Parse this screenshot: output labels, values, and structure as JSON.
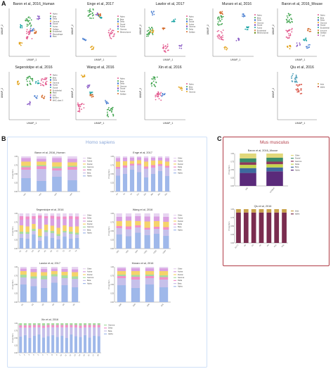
{
  "panel_labels": {
    "a": "A",
    "b": "B",
    "c": "C"
  },
  "umap_axes": {
    "x": "UMAP_1",
    "y": "UMAP_2"
  },
  "umaps": [
    {
      "title": "Baron et al, 2016_Human",
      "legend": [
        "Alpha",
        "Beta",
        "Delta",
        "Gamma",
        "Ductal",
        "Acinar",
        "Stellate",
        "Endothelial",
        "Macrophage",
        "Mast"
      ]
    },
    {
      "title": "Enge et al, 2017",
      "legend": [
        "Alpha",
        "Beta",
        "Delta",
        "Ductal",
        "Acinar",
        "Gamma",
        "Mesenchyme"
      ]
    },
    {
      "title": "Lawlor et al, 2017",
      "legend": [
        "Alpha",
        "Beta",
        "Ductal",
        "Acinar",
        "Gamma",
        "Delta",
        "Stellate"
      ]
    },
    {
      "title": "Muraro et al, 2016",
      "legend": [
        "Alpha",
        "Beta",
        "Delta",
        "Gamma",
        "Ductal",
        "Acinar",
        "Endothelial",
        "Mesenchymal"
      ]
    },
    {
      "title": "Baron et al, 2016_Mouse",
      "legend": [
        "Alpha",
        "Beta",
        "Delta",
        "Gamma",
        "Ductal",
        "Endothelial",
        "Immune",
        "Stellate",
        "T cell"
      ]
    },
    {
      "title": "Segerstolpe et al, 2016",
      "legend": [
        "Alpha",
        "Beta",
        "Delta",
        "Gamma",
        "Acinar",
        "Ductal",
        "Endothelial",
        "Mast",
        "PSC",
        "Epsilon",
        "MHC class II"
      ]
    },
    {
      "title": "Wang et al, 2016",
      "legend": [
        "Alpha",
        "Beta",
        "Delta",
        "Gamma",
        "Ductal",
        "Acinar",
        "Stellate"
      ]
    },
    {
      "title": "Xin et al, 2016",
      "legend": [
        "Alpha",
        "Beta",
        "Delta",
        "Gamma"
      ]
    },
    {
      "title": "Qiu et al, 2016",
      "legend": [
        "beta",
        "alpha"
      ]
    }
  ],
  "section_b": {
    "heading": "Homo sapiens"
  },
  "section_c": {
    "heading": "Mus musculus"
  },
  "colors": {
    "Alpha": "#9fb8ea",
    "Beta": "#c6c0ea",
    "Delta": "#f08fc9",
    "Gamma": "#a6dca0",
    "Ductal": "#f5d36a",
    "Acinar": "#d9a0e2",
    "Stellate": "#7fd3d8",
    "Endothelial": "#ba9a8a",
    "Macrophage": "#d6a7a0",
    "Mast": "#f7b3a0",
    "Other": "#e7d4f1",
    "Ubeta": "#d4a22f",
    "Ualpha": "#4f9eb8"
  },
  "chart_data": [
    {
      "type": "bar",
      "title": "Baron et al, 2016_Human",
      "ylabel": "Proportion",
      "categories": [
        "Hs1",
        "Hs2",
        "Hs3",
        "Hs4"
      ],
      "ylim": [
        0,
        1
      ],
      "series": [
        {
          "name": "Alpha",
          "values": [
            0.38,
            0.3,
            0.42,
            0.32
          ]
        },
        {
          "name": "Beta",
          "values": [
            0.24,
            0.34,
            0.18,
            0.3
          ]
        },
        {
          "name": "Delta",
          "values": [
            0.07,
            0.08,
            0.06,
            0.08
          ]
        },
        {
          "name": "Gamma",
          "values": [
            0.04,
            0.03,
            0.05,
            0.03
          ]
        },
        {
          "name": "Ductal",
          "values": [
            0.12,
            0.1,
            0.12,
            0.1
          ]
        },
        {
          "name": "Acinar",
          "values": [
            0.1,
            0.08,
            0.12,
            0.1
          ]
        },
        {
          "name": "Other",
          "values": [
            0.05,
            0.07,
            0.05,
            0.07
          ]
        }
      ]
    },
    {
      "type": "bar",
      "title": "Enge et al, 2017",
      "ylabel": "Proportion",
      "categories": [
        "1m",
        "5y",
        "6y",
        "21y",
        "22y",
        "38y",
        "44y",
        "54y"
      ],
      "ylim": [
        0,
        1
      ],
      "series": [
        {
          "name": "Alpha",
          "values": [
            0.45,
            0.5,
            0.62,
            0.55,
            0.4,
            0.5,
            0.58,
            0.44
          ]
        },
        {
          "name": "Beta",
          "values": [
            0.2,
            0.18,
            0.12,
            0.2,
            0.25,
            0.18,
            0.15,
            0.24
          ]
        },
        {
          "name": "Delta",
          "values": [
            0.05,
            0.06,
            0.05,
            0.04,
            0.06,
            0.07,
            0.05,
            0.05
          ]
        },
        {
          "name": "Ductal",
          "values": [
            0.15,
            0.12,
            0.08,
            0.1,
            0.14,
            0.13,
            0.1,
            0.12
          ]
        },
        {
          "name": "Acinar",
          "values": [
            0.1,
            0.1,
            0.09,
            0.08,
            0.1,
            0.08,
            0.08,
            0.1
          ]
        },
        {
          "name": "Other",
          "values": [
            0.05,
            0.04,
            0.04,
            0.03,
            0.05,
            0.04,
            0.04,
            0.05
          ]
        }
      ]
    },
    {
      "type": "bar",
      "title": "Segerstolpe et al, 2016",
      "ylabel": "Proportion",
      "categories": [
        "H1",
        "H2",
        "H3",
        "H4",
        "H5",
        "H6",
        "T1",
        "T2",
        "T3",
        "T4"
      ],
      "ylim": [
        0,
        1
      ],
      "series": [
        {
          "name": "Alpha",
          "values": [
            0.3,
            0.28,
            0.4,
            0.22,
            0.35,
            0.3,
            0.26,
            0.34,
            0.28,
            0.3
          ]
        },
        {
          "name": "Beta",
          "values": [
            0.12,
            0.14,
            0.1,
            0.1,
            0.12,
            0.14,
            0.1,
            0.12,
            0.14,
            0.1
          ]
        },
        {
          "name": "Gamma",
          "values": [
            0.06,
            0.05,
            0.06,
            0.04,
            0.05,
            0.06,
            0.05,
            0.04,
            0.06,
            0.05
          ]
        },
        {
          "name": "Ductal",
          "values": [
            0.18,
            0.16,
            0.14,
            0.2,
            0.16,
            0.15,
            0.18,
            0.16,
            0.14,
            0.18
          ]
        },
        {
          "name": "Acinar",
          "values": [
            0.16,
            0.2,
            0.14,
            0.3,
            0.18,
            0.2,
            0.24,
            0.18,
            0.22,
            0.2
          ]
        },
        {
          "name": "Delta",
          "values": [
            0.1,
            0.08,
            0.08,
            0.08,
            0.06,
            0.08,
            0.08,
            0.07,
            0.08,
            0.08
          ]
        },
        {
          "name": "Other",
          "values": [
            0.08,
            0.09,
            0.08,
            0.06,
            0.08,
            0.07,
            0.09,
            0.09,
            0.08,
            0.09
          ]
        }
      ]
    },
    {
      "type": "bar",
      "title": "Wang et al, 2016",
      "ylabel": "Proportion",
      "categories": [
        "ND1",
        "ND2",
        "ND3",
        "T2D1",
        "T2D2",
        "T2D3"
      ],
      "ylim": [
        0,
        1
      ],
      "series": [
        {
          "name": "Alpha",
          "values": [
            0.4,
            0.35,
            0.45,
            0.38,
            0.42,
            0.36
          ]
        },
        {
          "name": "Beta",
          "values": [
            0.18,
            0.2,
            0.15,
            0.16,
            0.14,
            0.18
          ]
        },
        {
          "name": "Delta",
          "values": [
            0.06,
            0.08,
            0.06,
            0.05,
            0.06,
            0.07
          ]
        },
        {
          "name": "Ductal",
          "values": [
            0.14,
            0.16,
            0.12,
            0.18,
            0.16,
            0.15
          ]
        },
        {
          "name": "Acinar",
          "values": [
            0.12,
            0.12,
            0.14,
            0.14,
            0.13,
            0.14
          ]
        },
        {
          "name": "Other",
          "values": [
            0.1,
            0.09,
            0.08,
            0.09,
            0.09,
            0.1
          ]
        }
      ]
    },
    {
      "type": "bar",
      "title": "Lawlor et al, 2017",
      "ylabel": "Proportion",
      "categories": [
        "D1",
        "D2",
        "D3",
        "D4",
        "D5",
        "D6"
      ],
      "ylim": [
        0,
        1
      ],
      "series": [
        {
          "name": "Alpha",
          "values": [
            0.5,
            0.45,
            0.4,
            0.55,
            0.48,
            0.42
          ]
        },
        {
          "name": "Beta",
          "values": [
            0.2,
            0.22,
            0.25,
            0.18,
            0.2,
            0.24
          ]
        },
        {
          "name": "Gamma",
          "values": [
            0.08,
            0.06,
            0.1,
            0.06,
            0.08,
            0.07
          ]
        },
        {
          "name": "Ductal",
          "values": [
            0.1,
            0.12,
            0.1,
            0.09,
            0.1,
            0.12
          ]
        },
        {
          "name": "Acinar",
          "values": [
            0.07,
            0.09,
            0.09,
            0.07,
            0.08,
            0.08
          ]
        },
        {
          "name": "Other",
          "values": [
            0.05,
            0.06,
            0.06,
            0.05,
            0.06,
            0.07
          ]
        }
      ]
    },
    {
      "type": "bar",
      "title": "Muraro et al, 2016",
      "ylabel": "Proportion",
      "categories": [
        "D28",
        "D29",
        "D30",
        "D31"
      ],
      "ylim": [
        0,
        1
      ],
      "series": [
        {
          "name": "Alpha",
          "values": [
            0.48,
            0.4,
            0.5,
            0.42
          ]
        },
        {
          "name": "Beta",
          "values": [
            0.2,
            0.24,
            0.18,
            0.22
          ]
        },
        {
          "name": "Delta",
          "values": [
            0.06,
            0.08,
            0.06,
            0.07
          ]
        },
        {
          "name": "Gamma",
          "values": [
            0.04,
            0.05,
            0.04,
            0.05
          ]
        },
        {
          "name": "Ductal",
          "values": [
            0.1,
            0.11,
            0.1,
            0.12
          ]
        },
        {
          "name": "Acinar",
          "values": [
            0.08,
            0.08,
            0.08,
            0.08
          ]
        },
        {
          "name": "Other",
          "values": [
            0.04,
            0.04,
            0.04,
            0.04
          ]
        }
      ]
    },
    {
      "type": "bar",
      "title": "Xin et al, 2016",
      "ylabel": "Proportion",
      "categories": [
        "1",
        "2",
        "3",
        "4",
        "5",
        "6",
        "7",
        "8",
        "9",
        "10",
        "11",
        "12",
        "13",
        "14",
        "15",
        "16",
        "17",
        "18"
      ],
      "ylim": [
        0,
        1
      ],
      "series": [
        {
          "name": "Alpha",
          "values": [
            0.55,
            0.6,
            0.5,
            0.58,
            0.62,
            0.52,
            0.56,
            0.6,
            0.54,
            0.58,
            0.5,
            0.62,
            0.56,
            0.54,
            0.6,
            0.52,
            0.58,
            0.56
          ]
        },
        {
          "name": "Beta",
          "values": [
            0.3,
            0.25,
            0.35,
            0.28,
            0.24,
            0.32,
            0.3,
            0.26,
            0.32,
            0.28,
            0.36,
            0.24,
            0.3,
            0.3,
            0.26,
            0.34,
            0.28,
            0.3
          ]
        },
        {
          "name": "Delta",
          "values": [
            0.08,
            0.08,
            0.08,
            0.08,
            0.08,
            0.08,
            0.08,
            0.08,
            0.08,
            0.08,
            0.08,
            0.08,
            0.08,
            0.08,
            0.08,
            0.08,
            0.08,
            0.08
          ]
        },
        {
          "name": "Gamma",
          "values": [
            0.07,
            0.07,
            0.07,
            0.06,
            0.06,
            0.08,
            0.06,
            0.06,
            0.06,
            0.06,
            0.06,
            0.06,
            0.06,
            0.08,
            0.06,
            0.06,
            0.06,
            0.06
          ]
        }
      ]
    },
    {
      "type": "bar",
      "title": "Baron et al, 2016_Mouse",
      "ylabel": "Proportion",
      "categories": [
        "ICR",
        "C57BL/6"
      ],
      "ylim": [
        0,
        1
      ],
      "series": [
        {
          "name": "Alpha",
          "values": [
            0.4,
            0.45
          ]
        },
        {
          "name": "Beta",
          "values": [
            0.15,
            0.12
          ]
        },
        {
          "name": "Delta",
          "values": [
            0.1,
            0.1
          ]
        },
        {
          "name": "Gamma",
          "values": [
            0.08,
            0.08
          ]
        },
        {
          "name": "Ductal",
          "values": [
            0.12,
            0.12
          ]
        },
        {
          "name": "Other",
          "values": [
            0.15,
            0.13
          ]
        }
      ]
    },
    {
      "type": "bar",
      "title": "Qiu et al, 2016",
      "ylabel": "Proportion",
      "categories": [
        "E17.5",
        "P0",
        "P3",
        "P6",
        "P9",
        "P15",
        "P60"
      ],
      "ylim": [
        0,
        1
      ],
      "series": [
        {
          "name": "alpha",
          "values": [
            0.9,
            0.9,
            0.9,
            0.9,
            0.9,
            0.9,
            0.9
          ]
        },
        {
          "name": "beta",
          "values": [
            0.1,
            0.1,
            0.1,
            0.1,
            0.1,
            0.1,
            0.1
          ]
        }
      ]
    }
  ]
}
